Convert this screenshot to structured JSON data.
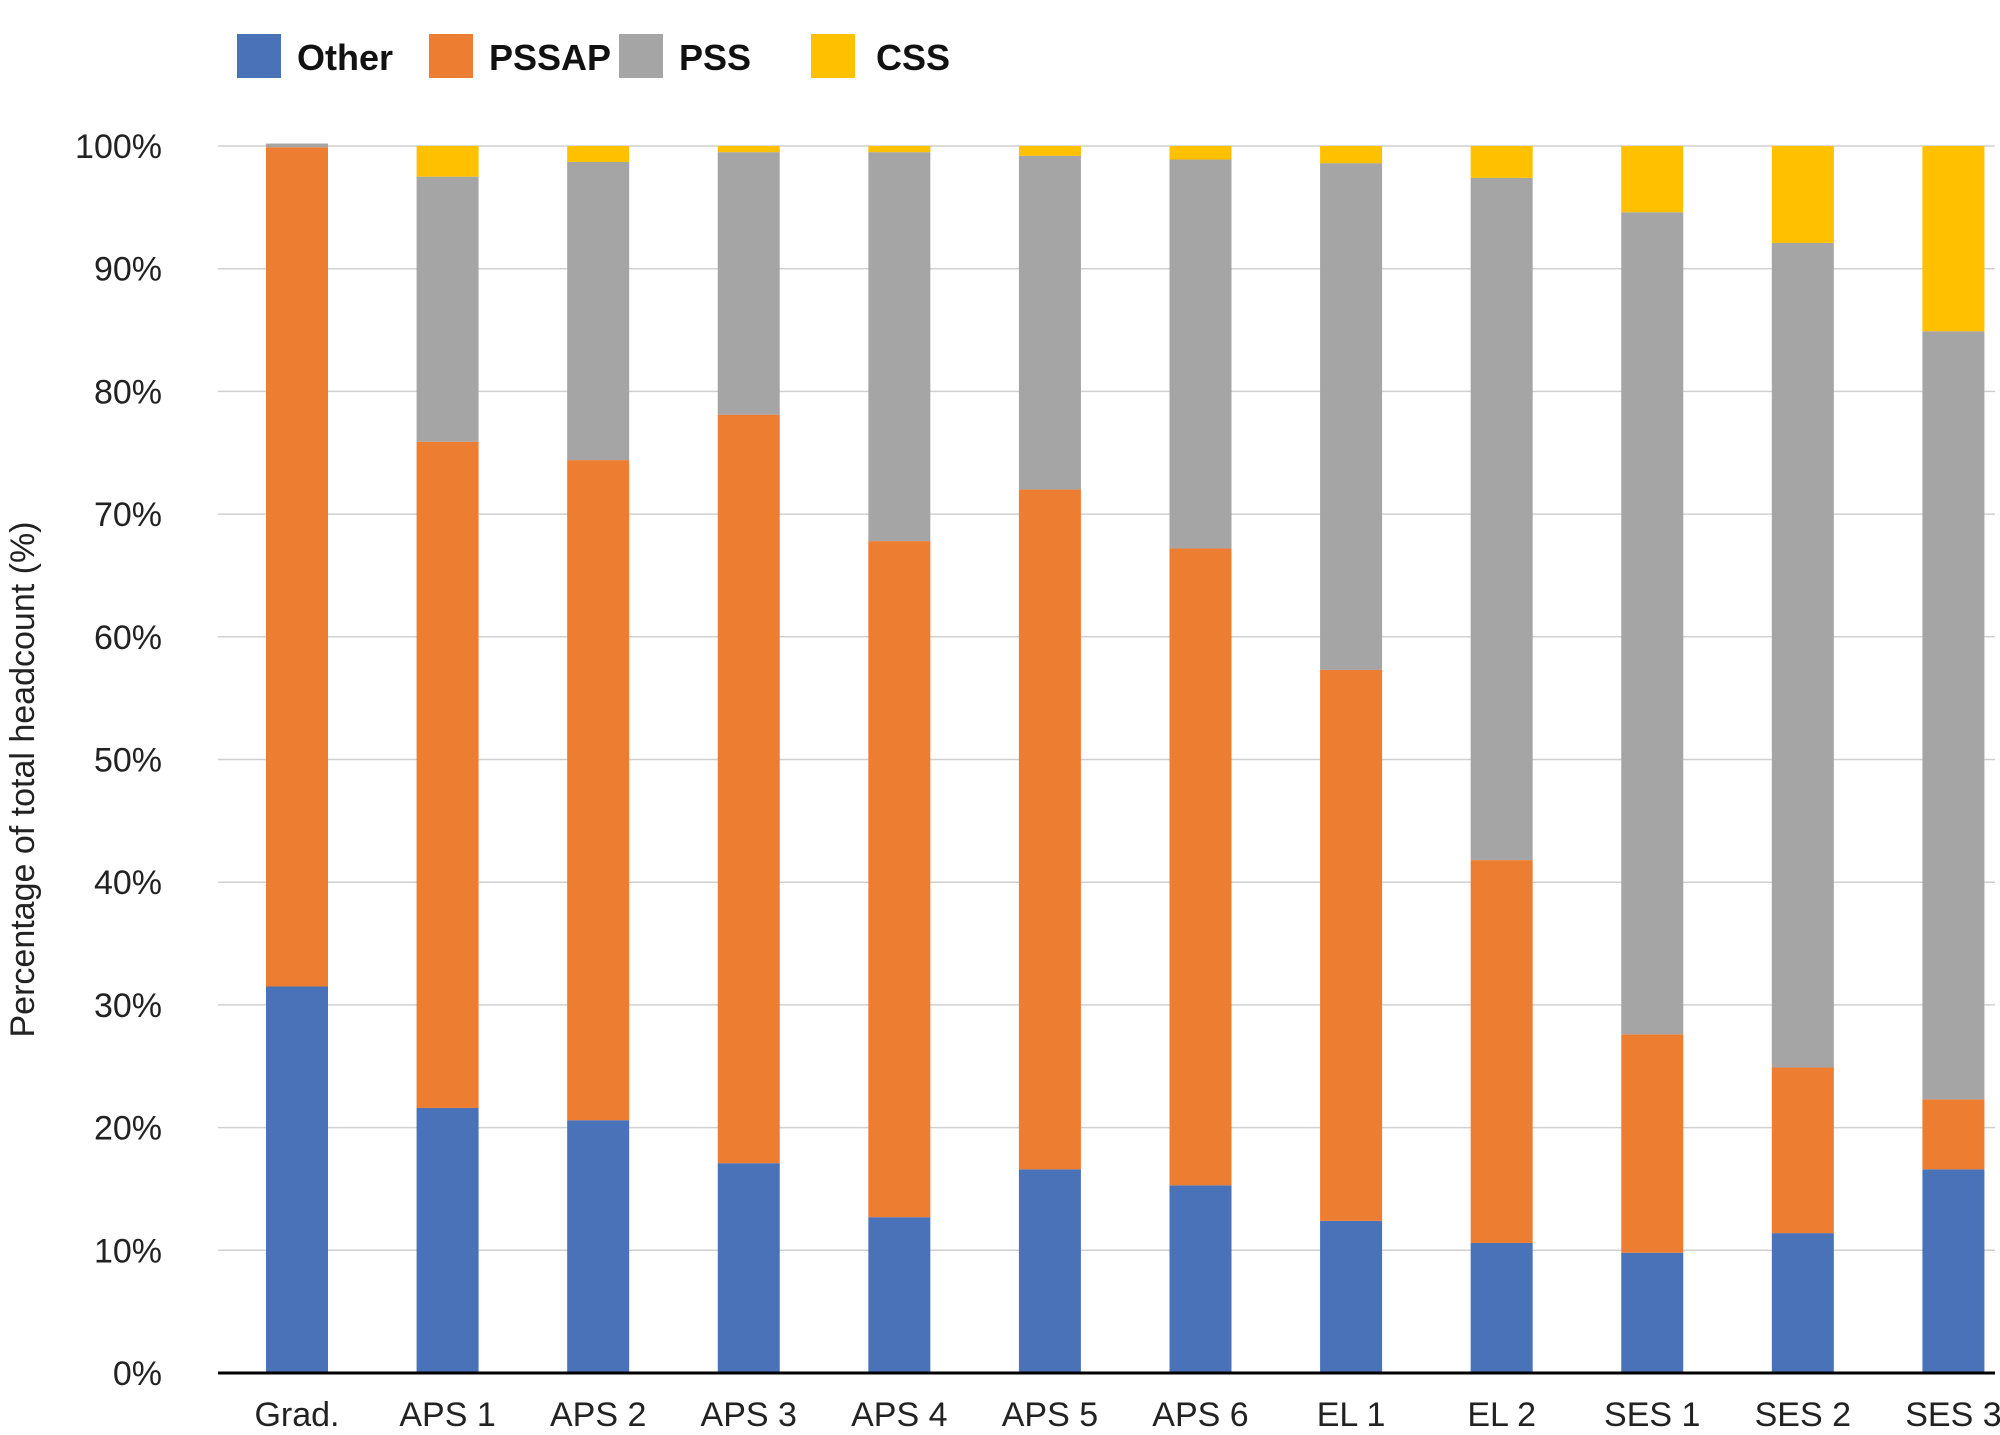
{
  "chart_data": {
    "type": "bar",
    "stacked": true,
    "title": "",
    "xlabel": "",
    "ylabel": "Percentage of total headcount (%)",
    "ylim": [
      0,
      100
    ],
    "y_ticks": [
      "0%",
      "10%",
      "20%",
      "30%",
      "40%",
      "50%",
      "60%",
      "70%",
      "80%",
      "90%",
      "100%"
    ],
    "y_tick_values": [
      0,
      10,
      20,
      30,
      40,
      50,
      60,
      70,
      80,
      90,
      100
    ],
    "grid": true,
    "legend_position": "top-left",
    "categories": [
      "Grad.",
      "APS 1",
      "APS 2",
      "APS 3",
      "APS 4",
      "APS 5",
      "APS 6",
      "EL 1",
      "EL 2",
      "SES 1",
      "SES 2",
      "SES 3"
    ],
    "series": [
      {
        "name": "Other",
        "color": "#4a72b8",
        "values": [
          31.5,
          21.6,
          20.6,
          17.1,
          12.7,
          16.6,
          15.3,
          12.4,
          10.6,
          9.8,
          11.4,
          16.6
        ]
      },
      {
        "name": "PSSAP",
        "color": "#ed7d31",
        "values": [
          68.4,
          54.3,
          53.8,
          61.0,
          55.1,
          55.4,
          51.9,
          44.9,
          31.2,
          17.8,
          13.5,
          5.7
        ]
      },
      {
        "name": "PSS",
        "color": "#a5a5a5",
        "values": [
          0.3,
          21.6,
          24.3,
          21.4,
          31.7,
          27.2,
          31.7,
          41.3,
          55.6,
          67.0,
          67.2,
          62.6
        ]
      },
      {
        "name": "CSS",
        "color": "#ffc000",
        "values": [
          0,
          2.5,
          1.3,
          0.5,
          0.5,
          0.8,
          1.1,
          1.4,
          2.6,
          5.4,
          7.9,
          15.1
        ]
      }
    ]
  }
}
